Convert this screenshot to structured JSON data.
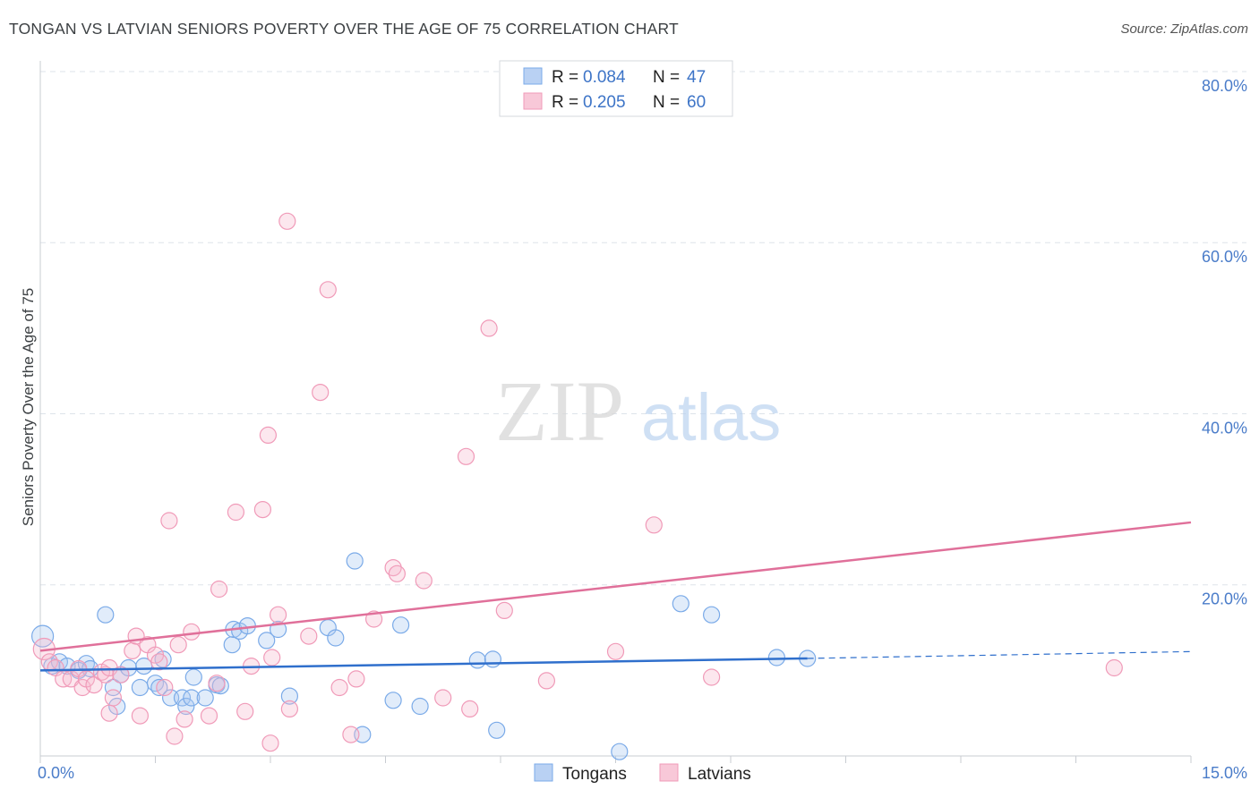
{
  "title": "TONGAN VS LATVIAN SENIORS POVERTY OVER THE AGE OF 75 CORRELATION CHART",
  "source": "Source: ZipAtlas.com",
  "watermark": {
    "zip": "ZIP",
    "atlas": "atlas"
  },
  "colors": {
    "tongans": "#7aaae8",
    "tongans_fill": "rgba(170,200,240,0.35)",
    "tongans_line": "#2f6fcc",
    "latvians": "#f09ab8",
    "latvians_fill": "rgba(245,185,205,0.35)",
    "latvians_line": "#e0709a",
    "grid": "#dde3ea",
    "tick_text": "#4a7cc9"
  },
  "legend": {
    "rows": [
      {
        "r_label": "R = ",
        "r_value": "0.084",
        "n_label": "N = ",
        "n_value": "47"
      },
      {
        "r_label": "R = ",
        "r_value": "0.205",
        "n_label": "N = ",
        "n_value": "60"
      }
    ]
  },
  "chart_data": {
    "type": "scatter",
    "title": "TONGAN VS LATVIAN SENIORS POVERTY OVER THE AGE OF 75 CORRELATION CHART",
    "xlabel": "",
    "ylabel": "Seniors Poverty Over the Age of 75",
    "xlim": [
      0,
      15
    ],
    "ylim": [
      0,
      80
    ],
    "x_tick_labels": [
      "0.0%",
      "15.0%"
    ],
    "y_ticks": [
      20,
      40,
      60,
      80
    ],
    "y_tick_labels": [
      "20.0%",
      "40.0%",
      "60.0%",
      "80.0%"
    ],
    "legend_labels": [
      "Tongans",
      "Latvians"
    ],
    "series": [
      {
        "name": "Tongans",
        "trend": {
          "x0": 0,
          "y0": 10.0,
          "x1": 10.0,
          "y1": 11.4,
          "dash_to_x": 15,
          "dash_to_y": 12.2
        },
        "points": [
          [
            0.03,
            14.0
          ],
          [
            0.15,
            10.5
          ],
          [
            0.25,
            11.0
          ],
          [
            0.35,
            10.5
          ],
          [
            0.5,
            10.0
          ],
          [
            0.6,
            10.8
          ],
          [
            0.65,
            10.2
          ],
          [
            0.85,
            16.5
          ],
          [
            0.95,
            8.0
          ],
          [
            1.0,
            5.8
          ],
          [
            1.05,
            9.5
          ],
          [
            1.15,
            10.3
          ],
          [
            1.3,
            8.0
          ],
          [
            1.35,
            10.5
          ],
          [
            1.5,
            8.5
          ],
          [
            1.55,
            8.0
          ],
          [
            1.6,
            11.3
          ],
          [
            1.7,
            6.8
          ],
          [
            1.85,
            6.8
          ],
          [
            1.9,
            5.8
          ],
          [
            1.97,
            6.8
          ],
          [
            2.0,
            9.2
          ],
          [
            2.15,
            6.8
          ],
          [
            2.3,
            8.3
          ],
          [
            2.35,
            8.2
          ],
          [
            2.5,
            13.0
          ],
          [
            2.52,
            14.8
          ],
          [
            2.6,
            14.6
          ],
          [
            2.7,
            15.2
          ],
          [
            2.95,
            13.5
          ],
          [
            3.1,
            14.8
          ],
          [
            3.25,
            7.0
          ],
          [
            3.75,
            15.0
          ],
          [
            3.85,
            13.8
          ],
          [
            4.1,
            22.8
          ],
          [
            4.2,
            2.5
          ],
          [
            4.6,
            6.5
          ],
          [
            4.7,
            15.3
          ],
          [
            4.95,
            5.8
          ],
          [
            5.7,
            11.2
          ],
          [
            5.9,
            11.3
          ],
          [
            5.95,
            3.0
          ],
          [
            7.55,
            0.5
          ],
          [
            8.35,
            17.8
          ],
          [
            8.75,
            16.5
          ],
          [
            9.6,
            11.5
          ],
          [
            10.0,
            11.4
          ]
        ]
      },
      {
        "name": "Latvians",
        "trend": {
          "x0": 0,
          "y0": 12.3,
          "x1": 15,
          "y1": 27.3
        },
        "points": [
          [
            0.05,
            12.5
          ],
          [
            0.12,
            11.0
          ],
          [
            0.2,
            10.3
          ],
          [
            0.3,
            9.0
          ],
          [
            0.4,
            9.0
          ],
          [
            0.5,
            10.2
          ],
          [
            0.55,
            8.0
          ],
          [
            0.6,
            9.0
          ],
          [
            0.7,
            8.3
          ],
          [
            0.8,
            9.8
          ],
          [
            0.85,
            9.5
          ],
          [
            0.9,
            10.3
          ],
          [
            0.95,
            6.8
          ],
          [
            1.05,
            9.5
          ],
          [
            1.2,
            12.3
          ],
          [
            1.25,
            14.0
          ],
          [
            1.3,
            4.7
          ],
          [
            1.4,
            13.0
          ],
          [
            1.5,
            11.8
          ],
          [
            1.55,
            11.0
          ],
          [
            1.62,
            8.0
          ],
          [
            1.68,
            27.5
          ],
          [
            1.75,
            2.3
          ],
          [
            1.8,
            13.0
          ],
          [
            1.88,
            4.3
          ],
          [
            1.97,
            14.5
          ],
          [
            2.2,
            4.7
          ],
          [
            2.3,
            8.5
          ],
          [
            2.33,
            19.5
          ],
          [
            2.55,
            28.5
          ],
          [
            2.67,
            5.2
          ],
          [
            2.75,
            10.5
          ],
          [
            2.9,
            28.8
          ],
          [
            2.97,
            37.5
          ],
          [
            3.0,
            1.5
          ],
          [
            3.1,
            16.5
          ],
          [
            3.22,
            62.5
          ],
          [
            3.25,
            5.5
          ],
          [
            3.5,
            14.0
          ],
          [
            3.75,
            54.5
          ],
          [
            3.9,
            8.0
          ],
          [
            3.65,
            42.5
          ],
          [
            4.05,
            2.5
          ],
          [
            4.12,
            9.0
          ],
          [
            4.35,
            16.0
          ],
          [
            4.6,
            22.0
          ],
          [
            4.65,
            21.3
          ],
          [
            5.0,
            20.5
          ],
          [
            5.25,
            6.8
          ],
          [
            5.55,
            35.0
          ],
          [
            5.6,
            5.5
          ],
          [
            5.85,
            50.0
          ],
          [
            6.05,
            17.0
          ],
          [
            6.6,
            8.8
          ],
          [
            7.5,
            12.2
          ],
          [
            8.0,
            27.0
          ],
          [
            8.75,
            9.2
          ],
          [
            14.0,
            10.3
          ],
          [
            3.02,
            11.5
          ],
          [
            0.9,
            5.0
          ]
        ]
      }
    ]
  }
}
